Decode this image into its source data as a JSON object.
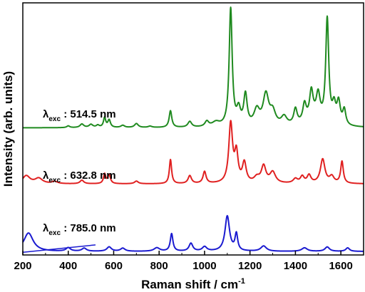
{
  "chart_data": {
    "type": "line",
    "xlabel": "Raman shift / cm",
    "xlabel_sup": "-1",
    "ylabel": "Intensity (arb. units)",
    "xlim": [
      200,
      1700
    ],
    "xticks": [
      200,
      400,
      600,
      800,
      1000,
      1200,
      1400,
      1600
    ],
    "yticks_shown": false,
    "grid": false,
    "legend": "none",
    "series": [
      {
        "name": "λexc : 514.5 nm",
        "label_main": "λ",
        "label_sub": "exc",
        "label_rest": " : 514.5 nm",
        "color": "#1f8a1f",
        "baseline": 2.9,
        "peaks": [
          [
            400,
            0.04,
            8
          ],
          [
            460,
            0.08,
            10
          ],
          [
            500,
            0.07,
            10
          ],
          [
            530,
            0.05,
            8
          ],
          [
            560,
            0.22,
            6
          ],
          [
            580,
            0.17,
            7
          ],
          [
            640,
            0.05,
            10
          ],
          [
            700,
            0.09,
            10
          ],
          [
            760,
            0.03,
            10
          ],
          [
            850,
            0.38,
            7
          ],
          [
            935,
            0.13,
            10
          ],
          [
            1010,
            0.12,
            10
          ],
          [
            1050,
            0.1,
            20
          ],
          [
            1115,
            2.68,
            8
          ],
          [
            1150,
            0.35,
            10
          ],
          [
            1180,
            0.7,
            9
          ],
          [
            1230,
            0.35,
            15
          ],
          [
            1270,
            0.7,
            15
          ],
          [
            1300,
            0.3,
            15
          ],
          [
            1350,
            0.2,
            15
          ],
          [
            1400,
            0.35,
            9
          ],
          [
            1440,
            0.4,
            9
          ],
          [
            1470,
            0.6,
            9
          ],
          [
            1500,
            0.55,
            10
          ],
          [
            1540,
            2.38,
            8
          ],
          [
            1570,
            0.4,
            9
          ],
          [
            1590,
            0.5,
            9
          ],
          [
            1615,
            0.35,
            8
          ],
          [
            1480,
            0.2,
            40
          ]
        ]
      },
      {
        "name": "λexc : 632.8 nm",
        "label_main": "λ",
        "label_sub": "exc",
        "label_rest": " : 632.8 nm",
        "color": "#e02020",
        "baseline": 1.62,
        "peaks": [
          [
            215,
            0.18,
            20
          ],
          [
            270,
            0.12,
            20
          ],
          [
            340,
            0.05,
            15
          ],
          [
            460,
            0.08,
            10
          ],
          [
            560,
            0.22,
            6
          ],
          [
            580,
            0.2,
            7
          ],
          [
            700,
            0.06,
            10
          ],
          [
            850,
            0.55,
            6
          ],
          [
            935,
            0.18,
            9
          ],
          [
            1000,
            0.27,
            8
          ],
          [
            1115,
            1.35,
            10
          ],
          [
            1140,
            0.65,
            9
          ],
          [
            1175,
            0.45,
            10
          ],
          [
            1230,
            0.12,
            15
          ],
          [
            1260,
            0.38,
            12
          ],
          [
            1300,
            0.25,
            15
          ],
          [
            1400,
            0.1,
            12
          ],
          [
            1430,
            0.15,
            10
          ],
          [
            1460,
            0.18,
            10
          ],
          [
            1520,
            0.55,
            12
          ],
          [
            1560,
            0.15,
            12
          ],
          [
            1605,
            0.5,
            7
          ]
        ]
      },
      {
        "name": "λexc : 785.0 nm",
        "label_main": "λ",
        "label_sub": "exc",
        "label_rest": " : 785.0 nm",
        "color": "#1a1ad0",
        "baseline": 0.08,
        "slope_to": 0.25,
        "peaks": [
          [
            225,
            0.42,
            25
          ],
          [
            400,
            0.08,
            12
          ],
          [
            470,
            0.07,
            12
          ],
          [
            580,
            0.1,
            12
          ],
          [
            640,
            0.07,
            12
          ],
          [
            790,
            0.08,
            15
          ],
          [
            855,
            0.4,
            7
          ],
          [
            940,
            0.18,
            10
          ],
          [
            1000,
            0.1,
            12
          ],
          [
            1100,
            0.8,
            12
          ],
          [
            1140,
            0.38,
            7
          ],
          [
            1260,
            0.12,
            15
          ],
          [
            1440,
            0.08,
            15
          ],
          [
            1540,
            0.1,
            12
          ],
          [
            1630,
            0.08,
            10
          ]
        ]
      }
    ]
  }
}
